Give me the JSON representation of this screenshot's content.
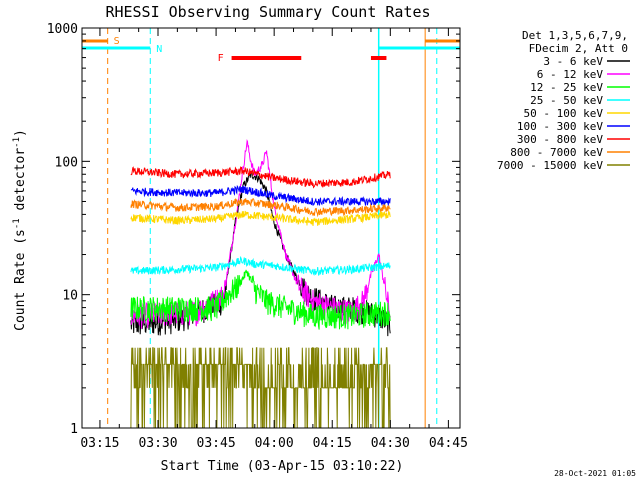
{
  "chart_data": {
    "type": "line",
    "title": "RHESSI Observing Summary Count Rates",
    "xlabel": "Start Time (03-Apr-15 03:10:22)",
    "ylabel": "Count Rate (s⁻¹ detector⁻¹)",
    "yscale": "log",
    "ylim": [
      1,
      1000
    ],
    "xlim_minutes": [
      "03:10:22",
      "04:48:00"
    ],
    "x_ticks": [
      "03:15",
      "03:30",
      "03:45",
      "04:00",
      "04:15",
      "04:30",
      "04:45"
    ],
    "y_ticks": [
      "1",
      "10",
      "100",
      "1000"
    ],
    "legend_header": [
      "Det 1,3,5,6,7,9,",
      "FDecim 2, Att 0"
    ],
    "footer_date": "28-Oct-2021 01:05",
    "series": [
      {
        "name": "3 - 6 keV",
        "color": "#000000",
        "points": [
          [
            "03:23",
            6
          ],
          [
            "03:35",
            6.5
          ],
          [
            "03:47",
            9
          ],
          [
            "03:50",
            35
          ],
          [
            "03:52",
            65
          ],
          [
            "03:54",
            80
          ],
          [
            "03:56",
            75
          ],
          [
            "03:58",
            60
          ],
          [
            "04:00",
            35
          ],
          [
            "04:03",
            20
          ],
          [
            "04:06",
            13
          ],
          [
            "04:09",
            10
          ],
          [
            "04:12",
            9
          ],
          [
            "04:16",
            8
          ],
          [
            "04:20",
            8
          ],
          [
            "04:24",
            7.5
          ],
          [
            "04:27",
            7
          ],
          [
            "04:30",
            6
          ]
        ]
      },
      {
        "name": "6 - 12 keV",
        "color": "#ff00ff",
        "points": [
          [
            "03:23",
            7
          ],
          [
            "03:40",
            7.5
          ],
          [
            "03:47",
            10
          ],
          [
            "03:50",
            35
          ],
          [
            "03:52",
            90
          ],
          [
            "03:53",
            140
          ],
          [
            "03:54",
            100
          ],
          [
            "03:55",
            80
          ],
          [
            "03:57",
            95
          ],
          [
            "03:58",
            120
          ],
          [
            "04:00",
            45
          ],
          [
            "04:03",
            20
          ],
          [
            "04:06",
            12
          ],
          [
            "04:10",
            9
          ],
          [
            "04:15",
            8
          ],
          [
            "04:20",
            7.5
          ],
          [
            "04:23",
            9
          ],
          [
            "04:25",
            14
          ],
          [
            "04:27",
            20
          ],
          [
            "04:30",
            7
          ]
        ]
      },
      {
        "name": "12 - 25 keV",
        "color": "#00ff00",
        "points": [
          [
            "03:23",
            8
          ],
          [
            "03:45",
            8
          ],
          [
            "03:48",
            10
          ],
          [
            "03:51",
            12
          ],
          [
            "03:53",
            15
          ],
          [
            "03:55",
            11
          ],
          [
            "03:58",
            9
          ],
          [
            "04:03",
            8
          ],
          [
            "04:10",
            7
          ],
          [
            "04:20",
            7
          ],
          [
            "04:30",
            7.5
          ]
        ]
      },
      {
        "name": "25 - 50 keV",
        "color": "#00ffff",
        "points": [
          [
            "03:23",
            15
          ],
          [
            "03:35",
            15.5
          ],
          [
            "03:45",
            16
          ],
          [
            "03:52",
            18
          ],
          [
            "03:55",
            17
          ],
          [
            "04:00",
            16.5
          ],
          [
            "04:10",
            15
          ],
          [
            "04:20",
            15.5
          ],
          [
            "04:30",
            16.5
          ]
        ]
      },
      {
        "name": "50 - 100 keV",
        "color": "#ffd700",
        "points": [
          [
            "03:23",
            38
          ],
          [
            "03:35",
            36
          ],
          [
            "03:45",
            37
          ],
          [
            "03:52",
            40
          ],
          [
            "04:00",
            38
          ],
          [
            "04:10",
            35
          ],
          [
            "04:20",
            37
          ],
          [
            "04:30",
            40
          ]
        ]
      },
      {
        "name": "100 - 300 keV",
        "color": "#0000ff",
        "points": [
          [
            "03:23",
            60
          ],
          [
            "03:35",
            58
          ],
          [
            "03:45",
            58
          ],
          [
            "03:52",
            62
          ],
          [
            "04:00",
            55
          ],
          [
            "04:10",
            50
          ],
          [
            "04:20",
            50
          ],
          [
            "04:30",
            50
          ]
        ]
      },
      {
        "name": "300 - 800 keV",
        "color": "#ff0000",
        "points": [
          [
            "03:23",
            85
          ],
          [
            "03:35",
            80
          ],
          [
            "03:45",
            82
          ],
          [
            "03:52",
            85
          ],
          [
            "04:00",
            75
          ],
          [
            "04:10",
            68
          ],
          [
            "04:20",
            70
          ],
          [
            "04:30",
            80
          ]
        ]
      },
      {
        "name": "800 - 7000 keV",
        "color": "#ff8000",
        "points": [
          [
            "03:23",
            48
          ],
          [
            "03:35",
            45
          ],
          [
            "03:45",
            46
          ],
          [
            "03:52",
            50
          ],
          [
            "04:00",
            47
          ],
          [
            "04:10",
            42
          ],
          [
            "04:20",
            43
          ],
          [
            "04:30",
            45
          ]
        ]
      },
      {
        "name": "7000 - 15000 keV",
        "color": "#808000",
        "points": [
          [
            "03:23",
            3
          ],
          [
            "03:40",
            2.5
          ],
          [
            "03:50",
            3
          ],
          [
            "04:00",
            2
          ],
          [
            "04:10",
            2
          ],
          [
            "04:20",
            2.5
          ],
          [
            "04:30",
            3
          ]
        ]
      }
    ],
    "flags": {
      "saa_label": "S",
      "night_label": "N",
      "flare_label": "F",
      "saa_color": "#ff8000",
      "night_color": "#00ffff",
      "flare_color": "#ff0000",
      "saa_intervals": [
        [
          "03:10:22",
          "03:17"
        ],
        [
          "04:39",
          "04:48"
        ]
      ],
      "night_intervals": [
        [
          "03:10:22",
          "03:28"
        ],
        [
          "04:27",
          "04:48"
        ]
      ],
      "flare_intervals": [
        [
          "03:49",
          "04:07"
        ],
        [
          "04:25",
          "04:29"
        ]
      ],
      "vlines_orange": [
        "03:17",
        "04:39"
      ],
      "vlines_cyan_dashed": [
        "03:28",
        "04:42"
      ],
      "vlines_cyan_solid": [
        "04:27"
      ]
    }
  }
}
